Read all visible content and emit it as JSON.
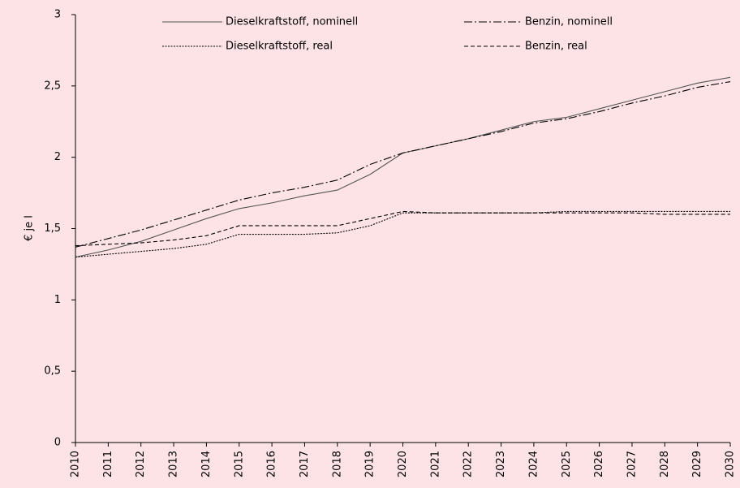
{
  "chart_data": {
    "type": "line",
    "ylabel": "€ je l",
    "x": [
      2010,
      2011,
      2012,
      2013,
      2014,
      2015,
      2016,
      2017,
      2018,
      2019,
      2020,
      2021,
      2022,
      2023,
      2024,
      2025,
      2026,
      2027,
      2028,
      2029,
      2030
    ],
    "xlim": [
      2010,
      2030
    ],
    "ylim": [
      0,
      3
    ],
    "yticks": [
      0,
      {
        "value": 0.5,
        "label": "0,5"
      },
      1,
      {
        "value": 1.5,
        "label": "1,5"
      },
      2,
      {
        "value": 2.5,
        "label": "2,5"
      },
      3
    ],
    "grid": false,
    "legend": "top",
    "series": [
      {
        "name": "Dieselkraftstoff, nominell",
        "color": "#555555",
        "dash": "solid",
        "values": [
          1.3,
          1.35,
          1.41,
          1.49,
          1.57,
          1.64,
          1.68,
          1.73,
          1.77,
          1.88,
          2.03,
          2.08,
          2.13,
          2.19,
          2.25,
          2.28,
          2.34,
          2.4,
          2.46,
          2.52,
          2.56
        ]
      },
      {
        "name": "Benzin, nominell",
        "color": "#000000",
        "dash": "dashdot",
        "values": [
          1.37,
          1.43,
          1.49,
          1.56,
          1.63,
          1.7,
          1.75,
          1.79,
          1.84,
          1.95,
          2.03,
          2.08,
          2.13,
          2.18,
          2.24,
          2.27,
          2.32,
          2.38,
          2.43,
          2.49,
          2.53
        ]
      },
      {
        "name": "Dieselkraftstoff, real",
        "color": "#000000",
        "dash": "dotted",
        "values": [
          1.3,
          1.32,
          1.34,
          1.36,
          1.39,
          1.46,
          1.46,
          1.46,
          1.47,
          1.52,
          1.61,
          1.61,
          1.61,
          1.61,
          1.61,
          1.62,
          1.62,
          1.62,
          1.62,
          1.62,
          1.62
        ]
      },
      {
        "name": "Benzin, real",
        "color": "#000000",
        "dash": "dashed",
        "values": [
          1.38,
          1.39,
          1.4,
          1.42,
          1.45,
          1.52,
          1.52,
          1.52,
          1.52,
          1.57,
          1.62,
          1.61,
          1.61,
          1.61,
          1.61,
          1.61,
          1.61,
          1.61,
          1.6,
          1.6,
          1.6
        ]
      }
    ]
  }
}
